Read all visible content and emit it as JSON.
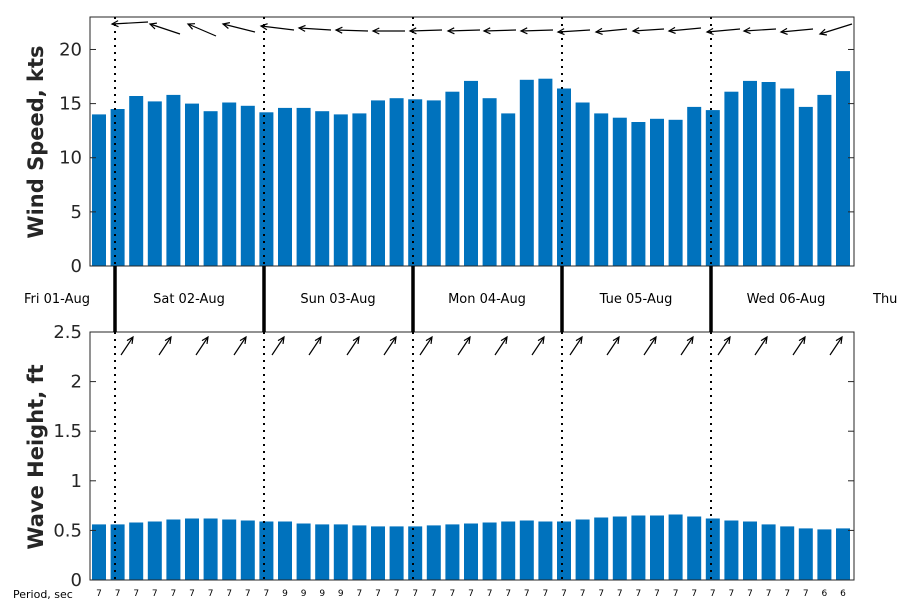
{
  "colors": {
    "bar": "#0072BD",
    "axis": "#262626",
    "arrow": "#000000"
  },
  "chart_data": [
    {
      "type": "bar",
      "ylabel": "Wind Speed, kts",
      "ylim": [
        0,
        23
      ],
      "yticks": [
        0,
        5,
        10,
        15,
        20
      ],
      "values": [
        14.0,
        14.5,
        15.7,
        15.2,
        15.8,
        15.0,
        14.3,
        15.1,
        14.8,
        14.2,
        14.6,
        14.6,
        14.3,
        14.0,
        14.1,
        15.3,
        15.5,
        15.4,
        15.3,
        16.1,
        17.1,
        15.5,
        14.1,
        17.2,
        17.3,
        16.4,
        15.1,
        14.1,
        13.7,
        13.3,
        13.6,
        13.5,
        14.7,
        14.4,
        16.1,
        17.1,
        17.0,
        16.4,
        14.7,
        15.8,
        18.0
      ],
      "direction_arrows": "wind direction arrows above bars, pointing westward (from the east)"
    },
    {
      "type": "bar",
      "ylabel": "Wave Height, ft",
      "ylim": [
        0,
        2.5
      ],
      "yticks": [
        "0",
        "0.5",
        "1",
        "1.5",
        "2",
        "2.5"
      ],
      "values": [
        0.56,
        0.56,
        0.58,
        0.59,
        0.61,
        0.62,
        0.62,
        0.61,
        0.6,
        0.59,
        0.59,
        0.57,
        0.56,
        0.56,
        0.55,
        0.54,
        0.54,
        0.54,
        0.55,
        0.56,
        0.57,
        0.58,
        0.59,
        0.6,
        0.59,
        0.59,
        0.61,
        0.63,
        0.64,
        0.65,
        0.65,
        0.66,
        0.64,
        0.62,
        0.6,
        0.59,
        0.56,
        0.54,
        0.52,
        0.51,
        0.52
      ],
      "direction_arrows": "wave direction arrows above bars, pointing north-east"
    }
  ],
  "days": [
    "Fri 01-Aug",
    "Sat 02-Aug",
    "Sun 03-Aug",
    "Mon 04-Aug",
    "Tue 05-Aug",
    "Wed 06-Aug",
    "Thu"
  ],
  "period_title": "Period, sec",
  "periods": [
    "7",
    "7",
    "7",
    "7",
    "7",
    "7",
    "7",
    "7",
    "7",
    "7",
    "9",
    "9",
    "9",
    "9",
    "7",
    "7",
    "7",
    "7",
    "7",
    "7",
    "7",
    "7",
    "7",
    "7",
    "7",
    "7",
    "7",
    "7",
    "7",
    "7",
    "7",
    "7",
    "7",
    "7",
    "7",
    "7",
    "7",
    "7",
    "7",
    "6",
    "6"
  ]
}
